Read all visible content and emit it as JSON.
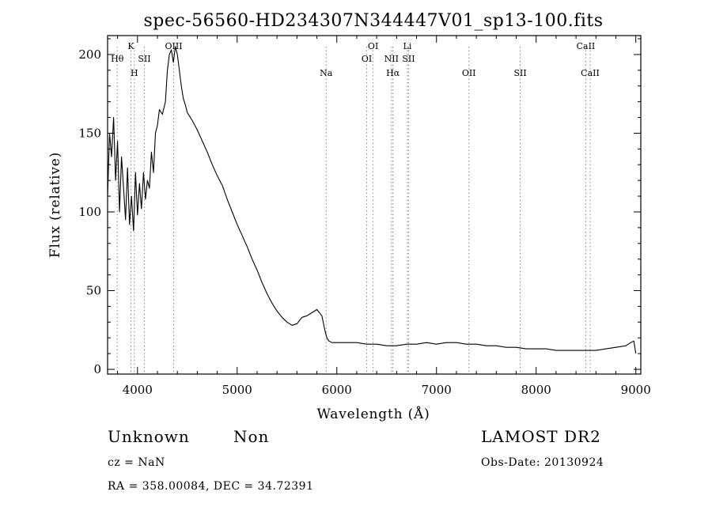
{
  "chart_data": {
    "type": "line",
    "title": "spec-56560-HD234307N344447V01_sp13-100.fits",
    "xlabel": "Wavelength (Å)",
    "ylabel": "Flux (relative)",
    "xlim": [
      3700,
      9050
    ],
    "ylim": [
      -3,
      212
    ],
    "x_ticks": [
      4000,
      5000,
      6000,
      7000,
      8000,
      9000
    ],
    "y_ticks": [
      0,
      50,
      100,
      150,
      200
    ],
    "grid": false,
    "line_color": "#000000",
    "marker_color": "#888888",
    "series": [
      {
        "x": [
          3700,
          3720,
          3740,
          3760,
          3780,
          3800,
          3820,
          3840,
          3860,
          3880,
          3900,
          3920,
          3940,
          3960,
          3980,
          4000,
          4020,
          4040,
          4060,
          4080,
          4100,
          4120,
          4140,
          4160,
          4180,
          4200,
          4220,
          4250,
          4280,
          4300,
          4320,
          4340,
          4360,
          4380,
          4400,
          4420,
          4440,
          4460,
          4480,
          4500,
          4550,
          4600,
          4650,
          4700,
          4750,
          4800,
          4850,
          4900,
          4950,
          5000,
          5050,
          5100,
          5150,
          5200,
          5250,
          5300,
          5350,
          5400,
          5450,
          5500,
          5550,
          5600,
          5650,
          5700,
          5750,
          5800,
          5850,
          5880,
          5900,
          5920,
          5950,
          6000,
          6100,
          6200,
          6300,
          6400,
          6500,
          6600,
          6700,
          6800,
          6900,
          7000,
          7100,
          7200,
          7300,
          7400,
          7500,
          7600,
          7700,
          7800,
          7900,
          8000,
          8100,
          8200,
          8300,
          8400,
          8500,
          8600,
          8700,
          8800,
          8900,
          8950,
          8980,
          9000
        ],
        "values": [
          110,
          150,
          135,
          160,
          120,
          145,
          100,
          135,
          115,
          95,
          128,
          92,
          110,
          88,
          125,
          98,
          118,
          102,
          125,
          108,
          120,
          115,
          138,
          125,
          150,
          155,
          165,
          162,
          170,
          190,
          200,
          203,
          195,
          205,
          200,
          190,
          180,
          172,
          168,
          163,
          158,
          152,
          145,
          138,
          130,
          123,
          117,
          108,
          100,
          92,
          85,
          78,
          70,
          63,
          55,
          48,
          42,
          37,
          33,
          30,
          28,
          29,
          33,
          34,
          36,
          38,
          34,
          25,
          20,
          18,
          17,
          17,
          17,
          17,
          16,
          16,
          15,
          15,
          16,
          16,
          17,
          16,
          17,
          17,
          16,
          16,
          15,
          15,
          14,
          14,
          13,
          13,
          13,
          12,
          12,
          12,
          12,
          12,
          13,
          14,
          15,
          17,
          18,
          10
        ]
      }
    ],
    "lines": [
      {
        "label": "Hθ",
        "x": 3797,
        "level": 2
      },
      {
        "label": "K",
        "x": 3934,
        "level": 1
      },
      {
        "label": "H",
        "x": 3968,
        "level": 3
      },
      {
        "label": "SII",
        "x": 4069,
        "level": 2
      },
      {
        "label": "OIII",
        "x": 4363,
        "level": 1
      },
      {
        "label": "Na",
        "x": 5893,
        "level": 3
      },
      {
        "label": "OI",
        "x": 6300,
        "level": 2
      },
      {
        "label": "OI",
        "x": 6364,
        "level": 1
      },
      {
        "label": "NII",
        "x": 6548,
        "level": 2
      },
      {
        "label": "Hα",
        "x": 6563,
        "level": 3
      },
      {
        "label": "Li",
        "x": 6708,
        "level": 1
      },
      {
        "label": "SII",
        "x": 6720,
        "level": 2
      },
      {
        "label": "OII",
        "x": 7325,
        "level": 3
      },
      {
        "label": "SII",
        "x": 7840,
        "level": 3
      },
      {
        "label": "CaII",
        "x": 8498,
        "level": 1
      },
      {
        "label": "CaII",
        "x": 8542,
        "level": 3
      }
    ]
  },
  "info": {
    "class": "Unknown",
    "subclass": "Non",
    "cz": "cz = NaN",
    "coords": "RA = 358.00084, DEC =  34.72391",
    "survey": "LAMOST DR2",
    "obs_date": "Obs-Date: 20130924"
  }
}
